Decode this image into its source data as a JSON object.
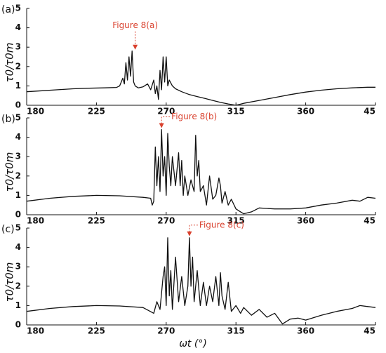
{
  "xlabel": "ωt (°)",
  "chart_data": [
    {
      "type": "line",
      "label": "(a)",
      "ylabel": "τ0/τ0m",
      "color": "#111111",
      "annotation": {
        "text": "Figure 8(a)",
        "x": 250,
        "y": 2.8,
        "color": "#d9412e"
      },
      "xlim": [
        180,
        405
      ],
      "xticks": [
        180,
        225,
        270,
        315,
        360,
        {
          "value": 405,
          "label": "45"
        }
      ],
      "ylim": [
        0,
        5
      ],
      "yticks": [
        0,
        1,
        2,
        3,
        4,
        5
      ],
      "x": [
        180,
        190,
        200,
        210,
        220,
        230,
        238,
        240,
        242,
        243,
        244,
        245,
        246,
        247,
        248,
        249,
        250,
        252,
        255,
        258,
        260,
        262,
        263,
        264,
        265,
        266,
        267,
        268,
        269,
        270,
        271,
        272,
        274,
        276,
        280,
        285,
        290,
        295,
        300,
        305,
        310,
        315,
        320,
        330,
        340,
        350,
        360,
        370,
        380,
        390,
        400,
        405
      ],
      "values": [
        0.7,
        0.75,
        0.8,
        0.85,
        0.88,
        0.9,
        0.92,
        1.0,
        1.4,
        1.1,
        2.2,
        1.3,
        2.5,
        1.5,
        2.8,
        1.2,
        1.0,
        0.9,
        0.95,
        1.1,
        0.8,
        1.3,
        0.6,
        1.0,
        0.3,
        1.8,
        0.8,
        2.5,
        1.2,
        2.5,
        1.0,
        1.3,
        1.0,
        0.85,
        0.7,
        0.55,
        0.45,
        0.35,
        0.25,
        0.15,
        0.07,
        0.0,
        0.1,
        0.25,
        0.4,
        0.55,
        0.68,
        0.78,
        0.85,
        0.9,
        0.93,
        0.93
      ]
    },
    {
      "type": "line",
      "label": "(b)",
      "ylabel": "τ0/τ0m",
      "color": "#111111",
      "annotation": {
        "text": "Figure 8(b)",
        "x": 267,
        "y": 4.4,
        "color": "#d9412e"
      },
      "xlim": [
        180,
        405
      ],
      "xticks": [
        180,
        225,
        270,
        315,
        360,
        {
          "value": 405,
          "label": "45"
        }
      ],
      "ylim": [
        0,
        5
      ],
      "yticks": [
        0,
        1,
        2,
        3,
        4,
        5
      ],
      "x": [
        180,
        195,
        210,
        225,
        240,
        255,
        260,
        261,
        262,
        263,
        264,
        265,
        266,
        267,
        268,
        269,
        270,
        271,
        272,
        273,
        274,
        276,
        278,
        279,
        280,
        281,
        282,
        284,
        286,
        288,
        289,
        290,
        291,
        292,
        294,
        296,
        298,
        300,
        302,
        304,
        305,
        306,
        308,
        310,
        312,
        315,
        318,
        320,
        325,
        330,
        340,
        350,
        360,
        370,
        380,
        390,
        395,
        400,
        405
      ],
      "values": [
        0.7,
        0.85,
        0.95,
        1.0,
        0.98,
        0.9,
        0.85,
        0.5,
        0.7,
        3.5,
        1.5,
        3.0,
        1.2,
        4.4,
        2.0,
        3.0,
        1.0,
        4.2,
        2.5,
        1.5,
        3.0,
        1.5,
        3.2,
        1.5,
        2.8,
        1.0,
        2.0,
        1.0,
        1.8,
        1.2,
        4.1,
        2.0,
        2.8,
        1.2,
        1.5,
        0.5,
        2.0,
        0.8,
        1.0,
        1.9,
        1.5,
        0.6,
        1.2,
        0.5,
        0.8,
        0.3,
        0.15,
        0.05,
        0.15,
        0.35,
        0.3,
        0.3,
        0.35,
        0.5,
        0.6,
        0.75,
        0.7,
        0.9,
        0.85
      ]
    },
    {
      "type": "line",
      "label": "(c)",
      "ylabel": "τ0/τ0m",
      "color": "#111111",
      "annotation": {
        "text": "Figure 8(c)",
        "x": 285,
        "y": 4.5,
        "color": "#d9412e"
      },
      "xlim": [
        180,
        405
      ],
      "xticks": [
        180,
        225,
        270,
        315,
        360,
        {
          "value": 405,
          "label": "45"
        }
      ],
      "ylim": [
        0,
        5
      ],
      "yticks": [
        0,
        1,
        2,
        3,
        4,
        5
      ],
      "x": [
        180,
        195,
        210,
        225,
        240,
        255,
        262,
        264,
        266,
        268,
        269,
        270,
        271,
        272,
        273,
        274,
        276,
        278,
        280,
        282,
        284,
        285,
        286,
        287,
        288,
        290,
        292,
        294,
        296,
        298,
        300,
        302,
        304,
        305,
        306,
        308,
        310,
        312,
        315,
        318,
        320,
        325,
        330,
        335,
        340,
        345,
        350,
        355,
        360,
        370,
        380,
        390,
        395,
        400,
        405
      ],
      "values": [
        0.7,
        0.85,
        0.95,
        1.0,
        0.98,
        0.9,
        0.6,
        1.2,
        0.8,
        2.5,
        3.0,
        1.0,
        4.5,
        1.5,
        2.8,
        0.8,
        3.5,
        1.2,
        2.5,
        1.0,
        2.0,
        4.5,
        2.0,
        3.5,
        1.2,
        2.8,
        1.0,
        2.2,
        1.0,
        2.0,
        1.2,
        2.5,
        1.0,
        2.7,
        1.5,
        0.8,
        2.2,
        0.7,
        1.0,
        0.6,
        0.9,
        0.5,
        0.8,
        0.4,
        0.6,
        0.05,
        0.3,
        0.35,
        0.25,
        0.5,
        0.7,
        0.85,
        1.0,
        0.95,
        0.9
      ]
    }
  ]
}
